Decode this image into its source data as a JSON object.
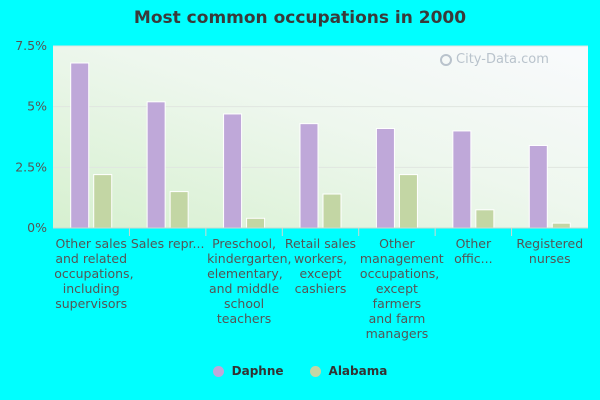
{
  "colors": {
    "series": [
      "#bfa8d9",
      "#c3d6a4"
    ],
    "grid": "#e0e6e0",
    "axis_text": "#555555"
  },
  "watermark": "City-Data.com",
  "chart_data": {
    "type": "bar",
    "title": "Most common occupations in 2000",
    "categories": [
      "Other sales and related occupations, including supervisors",
      "Sales repr...",
      "Preschool, kindergarten, elementary, and middle school teachers",
      "Retail sales workers, except cashiers",
      "Other management occupations, except farmers and farm managers",
      "Other offic...",
      "Registered nurses"
    ],
    "series": [
      {
        "name": "Daphne",
        "values": [
          6.8,
          5.2,
          4.7,
          4.3,
          4.1,
          4.0,
          3.4
        ]
      },
      {
        "name": "Alabama",
        "values": [
          2.2,
          1.5,
          0.4,
          1.4,
          2.2,
          0.75,
          0.2
        ]
      }
    ],
    "yticks": [
      "0%",
      "2.5%",
      "5%",
      "7.5%"
    ],
    "ytick_values": [
      0,
      2.5,
      5,
      7.5
    ],
    "ylim": [
      0,
      7.5
    ],
    "legend_position": "bottom",
    "grid": true
  }
}
